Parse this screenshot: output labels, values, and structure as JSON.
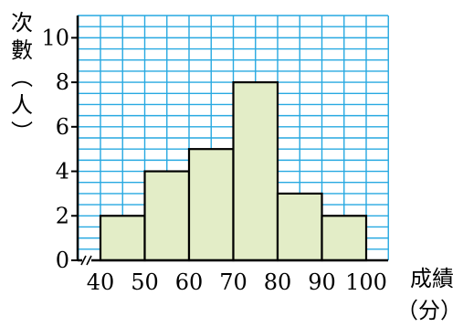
{
  "chart_data": {
    "type": "bar",
    "bins": [
      {
        "from": 40,
        "to": 50,
        "value": 2
      },
      {
        "from": 50,
        "to": 60,
        "value": 4
      },
      {
        "from": 60,
        "to": 70,
        "value": 5
      },
      {
        "from": 70,
        "to": 80,
        "value": 8
      },
      {
        "from": 80,
        "to": 90,
        "value": 3
      },
      {
        "from": 90,
        "to": 100,
        "value": 2
      }
    ],
    "x_ticks": [
      "40",
      "50",
      "60",
      "70",
      "80",
      "90",
      "100"
    ],
    "y_ticks": [
      "0",
      "2",
      "4",
      "6",
      "8",
      "10"
    ],
    "xlim": [
      40,
      100
    ],
    "ylim": [
      0,
      11
    ],
    "ylabel_chars": [
      "次",
      "數",
      "︵",
      "人",
      "︶"
    ],
    "xlabel_line1": "成績",
    "xlabel_line2": "（分）",
    "grid": true,
    "axis_break": true,
    "colors": {
      "bar_fill": "#e3edc7",
      "bar_stroke": "#000000",
      "grid": "#27a9e1",
      "axis": "#000000"
    }
  }
}
